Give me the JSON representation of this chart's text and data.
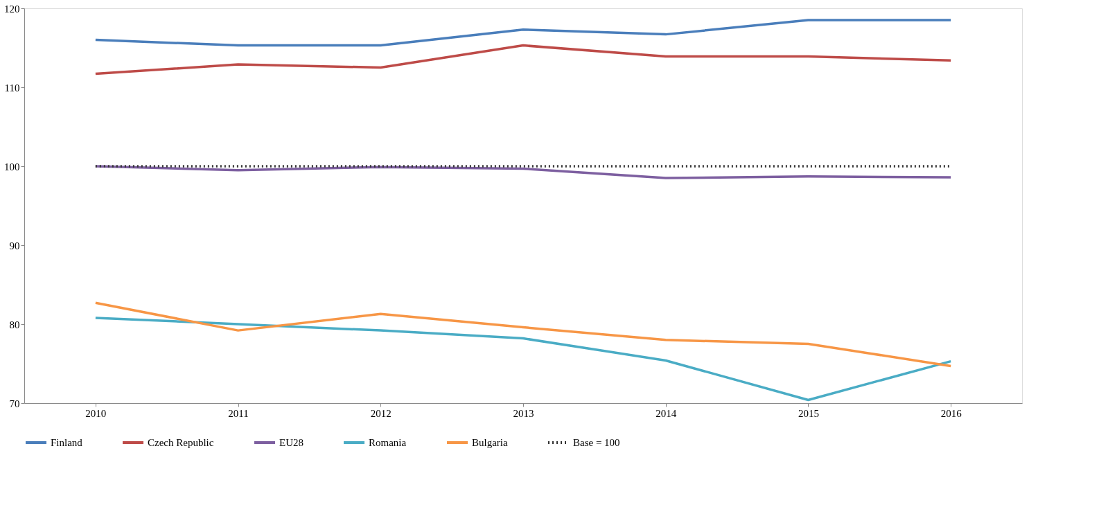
{
  "chart_data": {
    "type": "line",
    "categories": [
      "2010",
      "2011",
      "2012",
      "2013",
      "2014",
      "2015",
      "2016"
    ],
    "ylim": [
      70,
      120
    ],
    "yticks": [
      70,
      80,
      90,
      100,
      110,
      120
    ],
    "grid": false,
    "legend": "bottom",
    "series": [
      {
        "name": "Finland",
        "color": "#4a7ebb",
        "values": [
          116.0,
          115.3,
          115.3,
          117.3,
          116.7,
          118.5,
          118.5
        ]
      },
      {
        "name": "Czech Republic",
        "color": "#be4b48",
        "values": [
          111.7,
          112.9,
          112.5,
          115.3,
          113.9,
          113.9,
          113.4
        ]
      },
      {
        "name": "EU28",
        "color": "#7d5fa0",
        "values": [
          100.0,
          99.5,
          99.9,
          99.7,
          98.5,
          98.7,
          98.6
        ]
      },
      {
        "name": "Romania",
        "color": "#4aacc5",
        "values": [
          80.8,
          80.0,
          79.2,
          78.2,
          75.4,
          70.4,
          75.3
        ]
      },
      {
        "name": "Bulgaria",
        "color": "#f79646",
        "values": [
          82.7,
          79.2,
          81.3,
          79.6,
          78.0,
          77.5,
          74.7
        ]
      },
      {
        "name": "Base = 100",
        "color": "#333333",
        "line_style": "dotted",
        "values": [
          100,
          100,
          100,
          100,
          100,
          100,
          100
        ]
      }
    ]
  }
}
